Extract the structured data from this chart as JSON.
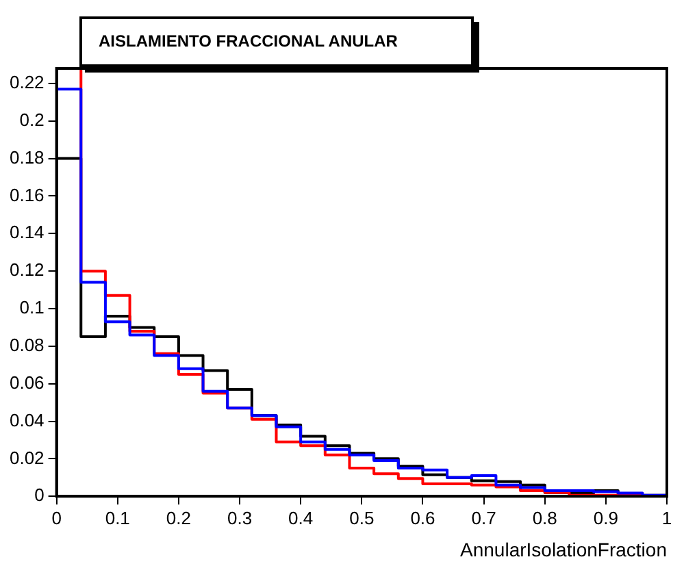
{
  "chart_data": {
    "type": "histogram",
    "title": "AISLAMIENTO FRACCIONAL ANULAR",
    "xlabel": "AnnularIsolationFraction",
    "bins": [
      0,
      0.04,
      0.08,
      0.12,
      0.16,
      0.2,
      0.24,
      0.28,
      0.32,
      0.36,
      0.4,
      0.44,
      0.48,
      0.52,
      0.56,
      0.6,
      0.64,
      0.68,
      0.72,
      0.76,
      0.8,
      0.84,
      0.88,
      0.92,
      0.96,
      1
    ],
    "series": [
      {
        "color": "#0000ff",
        "values": [
          0.217,
          0.114,
          0.093,
          0.086,
          0.075,
          0.068,
          0.056,
          0.047,
          0.043,
          0.037,
          0.029,
          0.025,
          0.022,
          0.019,
          0.015,
          0.014,
          0.01,
          0.011,
          0.006,
          0.0046,
          0.003,
          0.003,
          0.0024,
          0.0017,
          0.0005
        ]
      },
      {
        "color": "#ff0000",
        "values": [
          0.228,
          0.12,
          0.107,
          0.088,
          0.076,
          0.065,
          0.055,
          0.047,
          0.041,
          0.029,
          0.027,
          0.022,
          0.015,
          0.012,
          0.0095,
          0.0066,
          0.0066,
          0.006,
          0.005,
          0.003,
          0.002,
          0.0005,
          0.0005,
          0.0005,
          0
        ]
      },
      {
        "color": "#000000",
        "values": [
          0.18,
          0.085,
          0.096,
          0.09,
          0.085,
          0.075,
          0.067,
          0.057,
          0.043,
          0.038,
          0.032,
          0.027,
          0.023,
          0.02,
          0.016,
          0.0115,
          0.01,
          0.0083,
          0.0078,
          0.006,
          0.002,
          0.0017,
          0.003,
          0.0012,
          0.0005
        ]
      }
    ],
    "xlim": [
      0,
      1
    ],
    "xticks": [
      0,
      0.1,
      0.2,
      0.3,
      0.4,
      0.5,
      0.6,
      0.7,
      0.8,
      0.9,
      1
    ],
    "ylim": [
      0,
      0.228
    ],
    "yticks": [
      0,
      0.02,
      0.04,
      0.06,
      0.08,
      0.1,
      0.12,
      0.14,
      0.16,
      0.18,
      0.2,
      0.22
    ],
    "grid": false,
    "legend": false
  }
}
